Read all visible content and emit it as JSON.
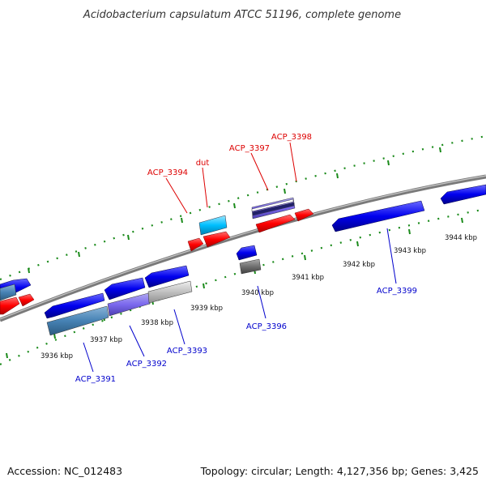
{
  "title": "Acidobacterium capsulatum ATCC 51196, complete genome",
  "footer": {
    "accession": "Accession: NC_012483",
    "summary": "Topology: circular; Length: 4,127,356 bp; Genes: 3,425"
  },
  "colors": {
    "forward": "#ff0000",
    "reverse": "#0000ee",
    "backbone": "#888888",
    "tick": "#008000"
  },
  "ticks": [
    {
      "label": "3936 kbp"
    },
    {
      "label": "3937 kbp"
    },
    {
      "label": "3938 kbp"
    },
    {
      "label": "3939 kbp"
    },
    {
      "label": "3940 kbp"
    },
    {
      "label": "3941 kbp"
    },
    {
      "label": "3942 kbp"
    },
    {
      "label": "3943 kbp"
    },
    {
      "label": "3944 kbp"
    }
  ],
  "gene_labels": [
    {
      "text": "ACP_3394",
      "strand": "forward"
    },
    {
      "text": "dut",
      "strand": "forward"
    },
    {
      "text": "ACP_3397",
      "strand": "forward"
    },
    {
      "text": "ACP_3398",
      "strand": "forward"
    },
    {
      "text": "ACP_3396",
      "strand": "reverse"
    },
    {
      "text": "ACP_3399",
      "strand": "reverse"
    },
    {
      "text": "ACP_3393",
      "strand": "reverse"
    },
    {
      "text": "ACP_3392",
      "strand": "reverse"
    },
    {
      "text": "ACP_3391",
      "strand": "reverse"
    }
  ]
}
